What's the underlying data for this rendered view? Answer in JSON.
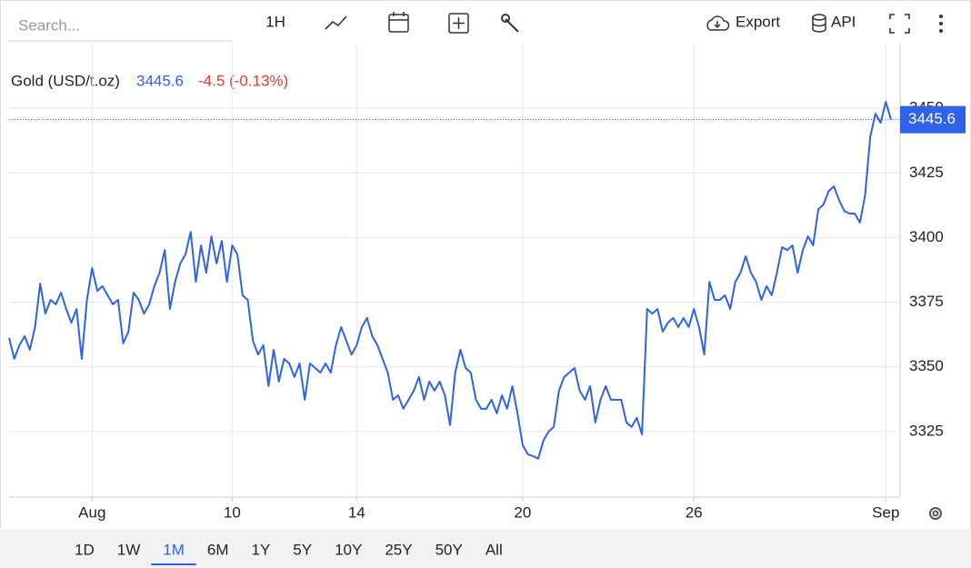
{
  "toolbar": {
    "search_placeholder": "Search...",
    "interval": "1H",
    "export": "Export",
    "api": "API"
  },
  "chart_data": {
    "type": "line",
    "title": "Gold (USD/t.oz)",
    "change_label": "-4.5 (-0.13%)",
    "color": "#2f62e8",
    "change_color": "#e53935",
    "values": [
      3361.2,
      3353.1,
      3358.4,
      3361.9,
      3356.6,
      3365.4,
      3382.2,
      3370.6,
      3375.9,
      3374.2,
      3378.7,
      3372.4,
      3367.1,
      3372.4,
      3353.1,
      3375.9,
      3388.2,
      3379.4,
      3381.2,
      3377.7,
      3374.2,
      3375.9,
      3359.1,
      3363.6,
      3378.7,
      3375.9,
      3370.6,
      3374.2,
      3381.2,
      3386.4,
      3395.2,
      3372.4,
      3382.9,
      3390,
      3393.5,
      3402.2,
      3382.9,
      3397,
      3386.4,
      3400.5,
      3390,
      3398.7,
      3382.9,
      3397,
      3393.5,
      3377.7,
      3375.9,
      3360.1,
      3354.8,
      3358.4,
      3342.6,
      3356.6,
      3344.3,
      3353.1,
      3351.3,
      3346.1,
      3351.3,
      3337.3,
      3351.3,
      3349.6,
      3347.8,
      3351.3,
      3347.8,
      3358.4,
      3365.4,
      3360.1,
      3354.8,
      3358.4,
      3365.4,
      3368.9,
      3361.9,
      3358.4,
      3353.1,
      3347.8,
      3337.3,
      3339,
      3333.8,
      3337.3,
      3340.8,
      3346.1,
      3337.3,
      3344.3,
      3340.8,
      3344.3,
      3339,
      3327.5,
      3347.8,
      3356.6,
      3349.6,
      3347.8,
      3337.3,
      3333.8,
      3333.8,
      3337.3,
      3332,
      3339,
      3333.8,
      3342.6,
      3332,
      3319.7,
      3316.2,
      3315.5,
      3314.5,
      3321.5,
      3325,
      3326.8,
      3340.8,
      3346.1,
      3347.8,
      3349.6,
      3340.8,
      3337.3,
      3342.6,
      3328.5,
      3337.3,
      3342.6,
      3337.3,
      3337.3,
      3337.3,
      3328.5,
      3326.8,
      3330.3,
      3323.9,
      3372.4,
      3370.6,
      3372.4,
      3363.6,
      3367.1,
      3368.9,
      3365.4,
      3368.9,
      3365.4,
      3372.4,
      3365.4,
      3354.8,
      3382.9,
      3375.9,
      3375.9,
      3377.7,
      3372.4,
      3382.9,
      3386.4,
      3392.8,
      3386.4,
      3382.9,
      3375.9,
      3381.2,
      3377.7,
      3386.4,
      3396.3,
      3395.2,
      3397,
      3386.4,
      3395.2,
      3400.5,
      3397,
      3411,
      3412.8,
      3418,
      3419.8,
      3414.5,
      3410.3,
      3409.3,
      3409.3,
      3405.8,
      3416.3,
      3439.1,
      3447.9,
      3444.4,
      3452.5,
      3445.6
    ],
    "xlim": [
      0,
      170
    ],
    "xticks": [
      {
        "value": 16,
        "label": "Aug"
      },
      {
        "value": 43,
        "label": "10"
      },
      {
        "value": 67,
        "label": "14"
      },
      {
        "value": 99,
        "label": "20"
      },
      {
        "value": 132,
        "label": "26"
      },
      {
        "value": 169,
        "label": "Sep"
      }
    ],
    "ylim": [
      3300,
      3475
    ],
    "yticks": [
      3325,
      3350,
      3375,
      3400,
      3425,
      3450
    ],
    "grid": true
  },
  "ranges": {
    "options": [
      "1D",
      "1W",
      "1M",
      "6M",
      "1Y",
      "5Y",
      "10Y",
      "25Y",
      "50Y",
      "All"
    ],
    "selected": "1M"
  }
}
